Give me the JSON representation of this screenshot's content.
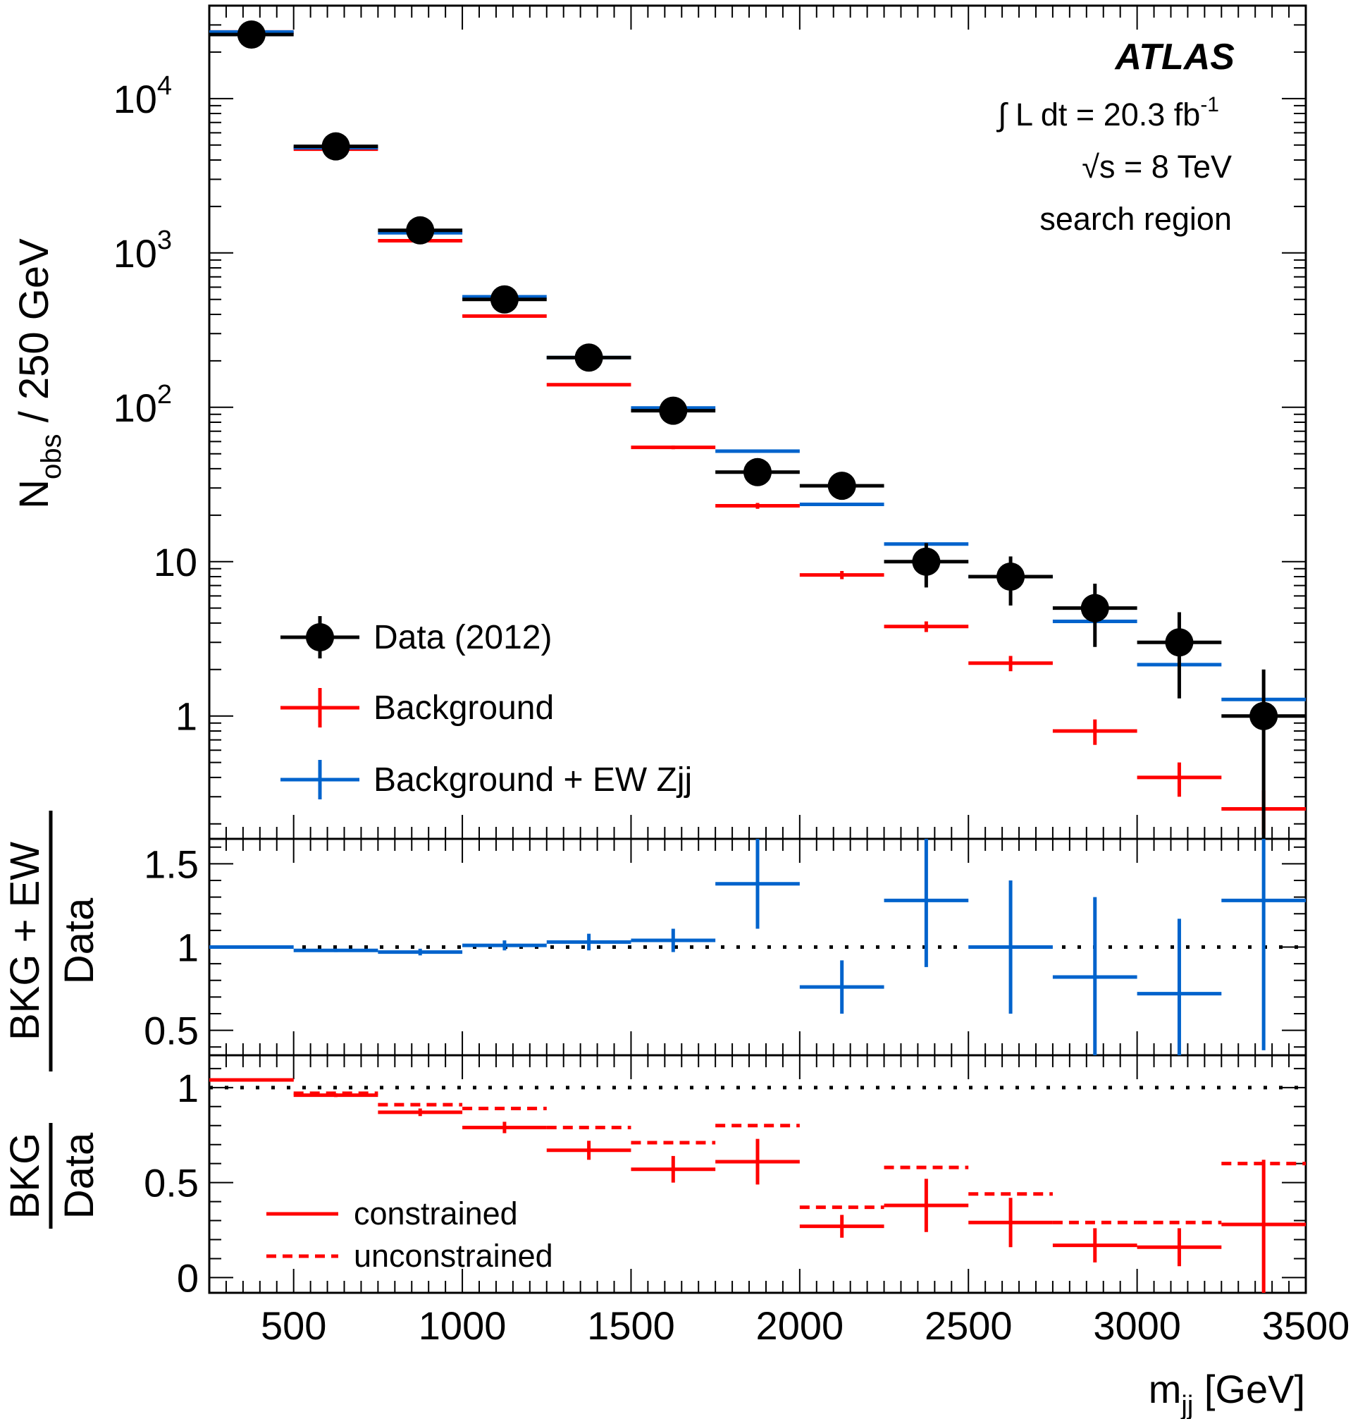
{
  "chart_data": {
    "type": "scatter",
    "bin_width": 250,
    "bin_centers": [
      375,
      625,
      875,
      1125,
      1375,
      1625,
      1875,
      2125,
      2375,
      2625,
      2875,
      3125,
      3375
    ],
    "x_axis": {
      "label": "m",
      "label_sub": "jj",
      "label_unit": " [GeV]",
      "range": [
        250,
        3500
      ],
      "ticks": [
        500,
        1000,
        1500,
        2000,
        2500,
        3000,
        3500
      ],
      "tick_labels": [
        "500",
        "1000",
        "1500",
        "2000",
        "2500",
        "3000",
        "3500"
      ]
    },
    "main_panel": {
      "y_scale": "log",
      "y_range": [
        0.16,
        40000
      ],
      "y_label": "N",
      "y_label_sub": "obs",
      "y_label_rest": " / 250 GeV",
      "y_ticks": [
        1,
        10,
        100,
        1000,
        10000
      ],
      "y_tick_labels": [
        {
          "base": "1",
          "exp": ""
        },
        {
          "base": "10",
          "exp": ""
        },
        {
          "base": "10",
          "exp": "2"
        },
        {
          "base": "10",
          "exp": "3"
        },
        {
          "base": "10",
          "exp": "4"
        }
      ],
      "series": [
        {
          "name": "Data (2012)",
          "color": "#000000",
          "marker": "circle",
          "values": [
            26000,
            4900,
            1400,
            500,
            210,
            95,
            38,
            31,
            10,
            8,
            5,
            3,
            1
          ],
          "errors": [
            161,
            70,
            37,
            22,
            14.5,
            9.7,
            6.2,
            5.6,
            3.2,
            2.8,
            2.2,
            1.7,
            1.0
          ]
        },
        {
          "name": "Background",
          "color": "#ff0000",
          "marker": "cross",
          "values": [
            27000,
            4700,
            1200,
            390,
            140,
            55,
            23,
            8.2,
            3.8,
            2.2,
            0.8,
            0.4,
            0.25
          ],
          "errors": [
            200,
            50,
            20,
            8,
            3,
            1.5,
            1.0,
            0.5,
            0.3,
            0.25,
            0.15,
            0.1,
            0.08
          ]
        },
        {
          "name": "Background + EW Zjj",
          "color": "#0063cc",
          "marker": "cross",
          "values": [
            27000,
            4800,
            1350,
            520,
            210,
            99,
            52,
            23.5,
            13,
            8,
            4.1,
            2.15,
            1.28
          ],
          "errors": [
            0,
            0,
            0,
            0,
            0,
            0,
            0,
            0,
            0,
            0,
            0,
            0,
            0
          ]
        }
      ]
    },
    "ratio_ew_panel": {
      "y_label_num": "BKG + EW",
      "y_label_den": "Data",
      "y_range": [
        0.35,
        1.65
      ],
      "y_ticks": [
        0.5,
        1,
        1.5
      ],
      "y_tick_labels": [
        "0.5",
        "1",
        "1.5"
      ],
      "reference": 1,
      "series": [
        {
          "name": "BKG + EW / Data",
          "color": "#0063cc",
          "values": [
            1.0,
            0.98,
            0.97,
            1.01,
            1.03,
            1.04,
            1.38,
            0.76,
            1.28,
            1.0,
            0.82,
            0.72,
            1.28
          ],
          "errors": [
            0.01,
            0.01,
            0.02,
            0.03,
            0.05,
            0.07,
            0.27,
            0.16,
            0.4,
            0.4,
            0.48,
            0.45,
            0.9
          ]
        }
      ]
    },
    "ratio_bkg_panel": {
      "y_label_num": "BKG",
      "y_label_den": "Data",
      "y_range": [
        -0.08,
        1.17
      ],
      "y_ticks": [
        0,
        0.5,
        1
      ],
      "y_tick_labels": [
        "0",
        "0.5",
        "1"
      ],
      "reference": 1,
      "series": [
        {
          "name": "constrained",
          "color": "#ff0000",
          "style": "solid",
          "values": [
            1.04,
            0.96,
            0.87,
            0.79,
            0.67,
            0.57,
            0.61,
            0.27,
            0.38,
            0.29,
            0.17,
            0.16,
            0.28
          ],
          "errors": [
            0.005,
            0.01,
            0.02,
            0.03,
            0.05,
            0.07,
            0.12,
            0.06,
            0.14,
            0.13,
            0.09,
            0.1,
            0.34
          ]
        },
        {
          "name": "unconstrained",
          "color": "#ff0000",
          "style": "dashed",
          "values": [
            1.04,
            0.97,
            0.91,
            0.89,
            0.79,
            0.71,
            0.8,
            0.37,
            0.58,
            0.44,
            0.29,
            0.29,
            0.6
          ],
          "errors": [
            0,
            0,
            0,
            0,
            0,
            0,
            0,
            0,
            0,
            0,
            0,
            0,
            0
          ]
        }
      ]
    },
    "annotations": {
      "experiment": "ATLAS",
      "lumi_prefix": "∫ L dt = 20.3 fb",
      "lumi_exp": "-1",
      "energy": "√s = 8 TeV",
      "region": "search region"
    },
    "legend_main": [
      "Data (2012)",
      "Background",
      "Background + EW Zjj"
    ],
    "legend_ratio": [
      "constrained",
      "unconstrained"
    ]
  }
}
